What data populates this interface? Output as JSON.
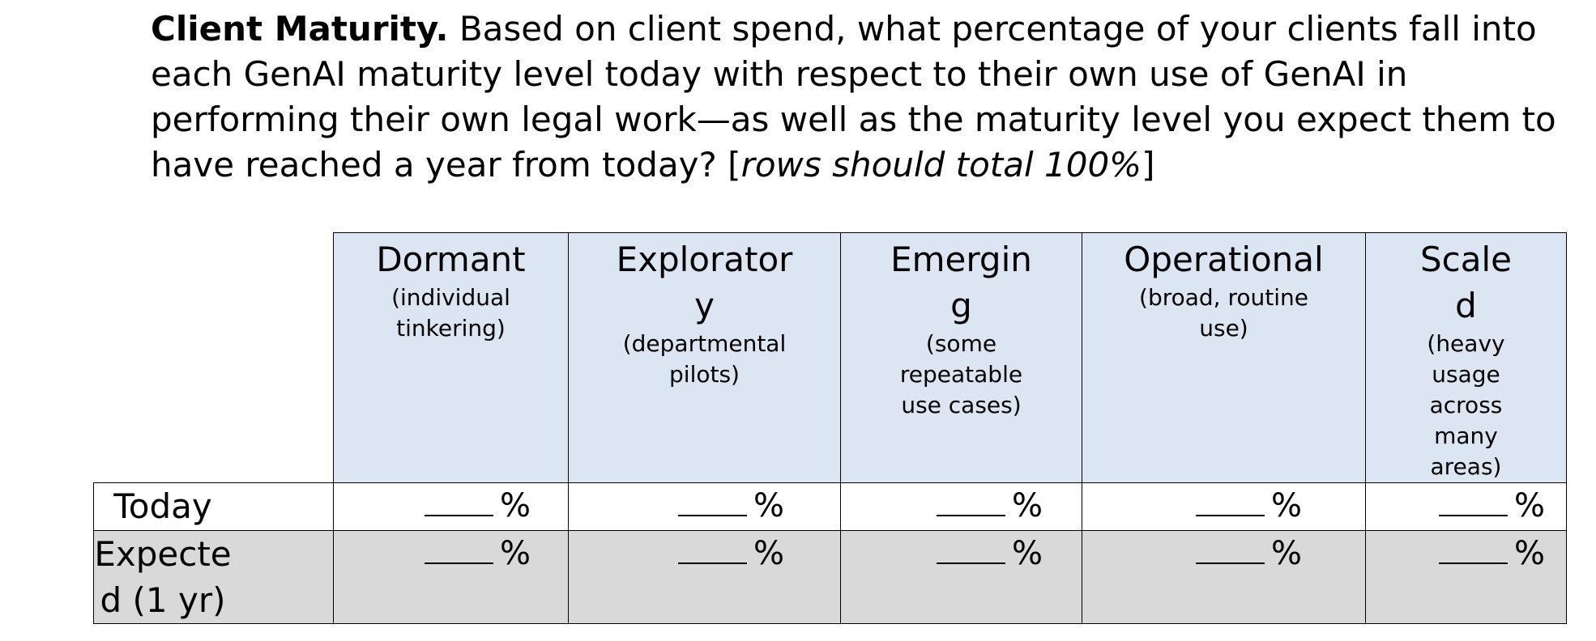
{
  "question": {
    "lead": "Client Maturity.",
    "body": "Based on client spend, what percentage of your clients fall into each GenAI maturity level today with respect to their own use of GenAI in performing their own legal work—as well as the maturity level you expect them to have reached a year from today? [",
    "note": "rows should total 100%",
    "close": "]"
  },
  "levels": [
    {
      "name": "Dormant",
      "desc": "(individual tinkering)"
    },
    {
      "name": "Exploratory",
      "desc": "(departmental pilots)"
    },
    {
      "name": "Emerging",
      "desc": "(some repeatable use cases)"
    },
    {
      "name": "Operational",
      "desc": "(broad, routine use)"
    },
    {
      "name": "Scaled",
      "desc": "(heavy usage across many areas)"
    }
  ],
  "rows": [
    {
      "label": "Today",
      "unit": "%"
    },
    {
      "label": "Expected (1 yr)",
      "unit": "%"
    }
  ]
}
